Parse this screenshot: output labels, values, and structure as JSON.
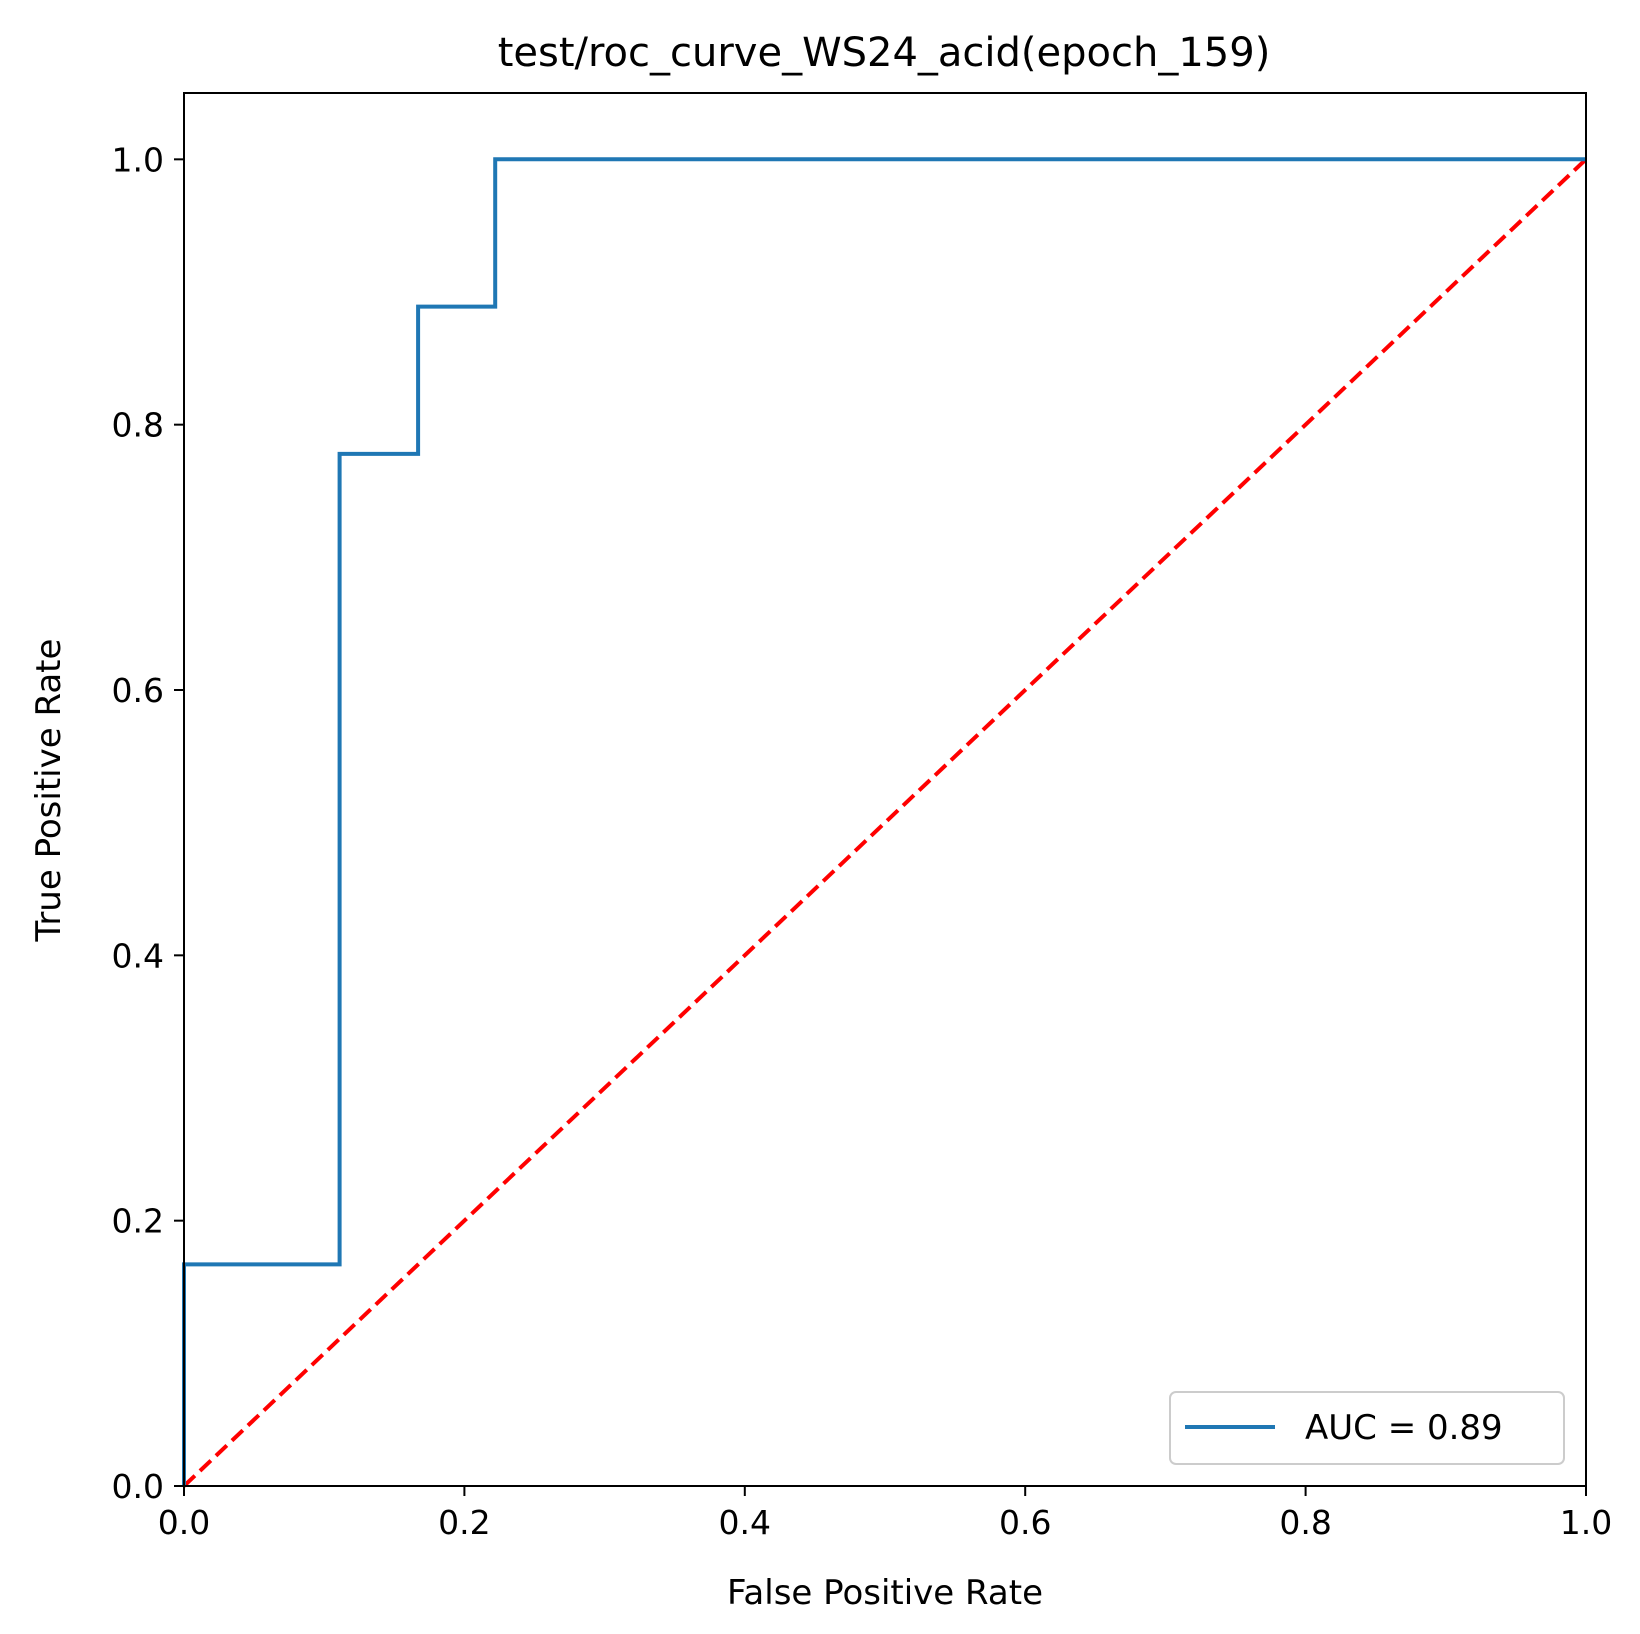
{
  "chart_data": {
    "type": "line",
    "title": "test/roc_curve_WS24_acid(epoch_159)",
    "xlabel": "False Positive Rate",
    "ylabel": "True Positive Rate",
    "xlim": [
      0.0,
      1.0
    ],
    "ylim": [
      0.0,
      1.05
    ],
    "x_ticks": [
      0.0,
      0.2,
      0.4,
      0.6,
      0.8,
      1.0
    ],
    "y_ticks": [
      0.0,
      0.2,
      0.4,
      0.6,
      0.8,
      1.0
    ],
    "x_tick_labels": [
      "0.0",
      "0.2",
      "0.4",
      "0.6",
      "0.8",
      "1.0"
    ],
    "y_tick_labels": [
      "0.0",
      "0.2",
      "0.4",
      "0.6",
      "0.8",
      "1.0"
    ],
    "grid": false,
    "legend_position": "lower-right",
    "series": [
      {
        "name": "AUC = 0.89",
        "color": "#1f77b4",
        "style": "solid",
        "x": [
          0.0,
          0.0,
          0.111,
          0.111,
          0.167,
          0.167,
          0.222,
          0.222,
          1.0
        ],
        "y": [
          0.0,
          0.167,
          0.167,
          0.778,
          0.778,
          0.889,
          0.889,
          1.0,
          1.0
        ]
      },
      {
        "color": "#ff0000",
        "style": "dashed",
        "x": [
          0.0,
          1.0
        ],
        "y": [
          0.0,
          1.0
        ]
      }
    ]
  }
}
